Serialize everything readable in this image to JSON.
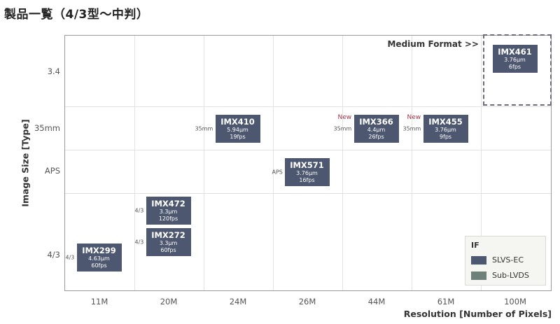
{
  "page": {
    "title": "製品一覧（4/3型～中判）"
  },
  "chart_data": {
    "type": "scatter",
    "xlabel": "Resolution [Number of Pixels]",
    "ylabel": "Image Size [Type]",
    "x_categories": [
      "11M",
      "20M",
      "24M",
      "26M",
      "44M",
      "61M",
      "100M"
    ],
    "y_categories": [
      "4/3",
      "APS",
      "35mm",
      "3.4"
    ],
    "medium_format_label": "Medium Format >>",
    "sensors": [
      {
        "name": "IMX299",
        "pixel": "4.63μm",
        "fps": "60fps",
        "x": "11M",
        "y": "4/3",
        "format_label": "4/3",
        "new_label": ""
      },
      {
        "name": "IMX472",
        "pixel": "3.3μm",
        "fps": "120fps",
        "x": "20M",
        "y": "4/3",
        "format_label": "4/3",
        "new_label": ""
      },
      {
        "name": "IMX272",
        "pixel": "3.3μm",
        "fps": "60fps",
        "x": "20M",
        "y": "4/3",
        "format_label": "4/3",
        "new_label": ""
      },
      {
        "name": "IMX410",
        "pixel": "5.94μm",
        "fps": "19fps",
        "x": "24M",
        "y": "35mm",
        "format_label": "35mm",
        "new_label": ""
      },
      {
        "name": "IMX571",
        "pixel": "3.76μm",
        "fps": "16fps",
        "x": "26M",
        "y": "APS",
        "format_label": "APS",
        "new_label": ""
      },
      {
        "name": "IMX366",
        "pixel": "4.4μm",
        "fps": "26fps",
        "x": "44M",
        "y": "35mm",
        "format_label": "35mm",
        "new_label": "New"
      },
      {
        "name": "IMX455",
        "pixel": "3.76μm",
        "fps": "9fps",
        "x": "61M",
        "y": "35mm",
        "format_label": "35mm",
        "new_label": "New"
      },
      {
        "name": "IMX461",
        "pixel": "3.76μm",
        "fps": "6fps",
        "x": "100M",
        "y": "3.4",
        "format_label": "",
        "new_label": ""
      }
    ],
    "legend": {
      "title": "IF",
      "position": "bottom-right",
      "items": [
        {
          "label": "SLVS-EC",
          "color": "#4d5870"
        },
        {
          "label": "Sub-LVDS",
          "color": "#6f7f7a"
        }
      ]
    },
    "grid": true
  }
}
